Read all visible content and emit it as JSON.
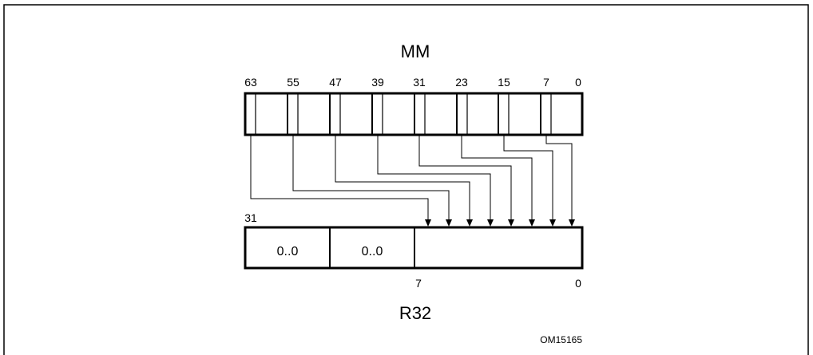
{
  "source_register": {
    "title": "MM",
    "bit_labels": [
      "63",
      "55",
      "47",
      "39",
      "31",
      "23",
      "15",
      "7",
      "0"
    ]
  },
  "destination_register": {
    "title": "R32",
    "msb_label": "31",
    "field_labels": [
      "0..0",
      "0..0"
    ],
    "low_field_bit_labels": [
      "7",
      "0"
    ]
  },
  "figure_id": "OM15165"
}
